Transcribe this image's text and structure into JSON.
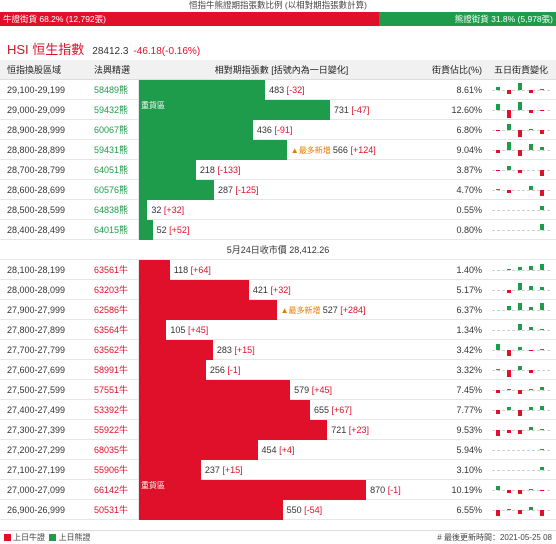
{
  "header": {
    "title": "恒指牛熊證期指張數比例 (以相對期指張數計算)",
    "bull_label": "牛證街貨 68.2% (12,792張)",
    "bull_pct": 68.2,
    "bear_label": "熊證街貨 31.8% (5,978張)",
    "bear_pct": 31.8
  },
  "index": {
    "name": "HSI 恒生指數",
    "value": "28412.3",
    "change": "-46.18(-0.16%)"
  },
  "columns": {
    "range": "恒指換股區域",
    "code": "法興精選",
    "bars": "相對期指張數 [括號內為一日變化]",
    "pct": "街貨佔比(%)",
    "five": "五日街貨變化"
  },
  "close_note": "5月24日收市價 28,412.26",
  "max_contracts": 900,
  "bear_rows": [
    {
      "range": "29,100-29,199",
      "code": "58489熊",
      "count": 483,
      "count_text": "483",
      "chg": "[-32]",
      "pct": "8.61%",
      "tag": "",
      "spark": [
        2,
        -3,
        5,
        -2,
        1
      ]
    },
    {
      "range": "29,000-29,099",
      "code": "59432熊",
      "count": 731,
      "count_text": "731",
      "chg": "[-47]",
      "pct": "12.60%",
      "tag": "重貨區",
      "spark": [
        4,
        -6,
        6,
        -2,
        -1
      ]
    },
    {
      "range": "28,900-28,999",
      "code": "60067熊",
      "count": 436,
      "count_text": "436",
      "chg": "[-91]",
      "pct": "6.80%",
      "tag": "",
      "spark": [
        -1,
        4,
        -5,
        1,
        -3
      ]
    },
    {
      "range": "28,800-28,899",
      "code": "59431熊",
      "count": 566,
      "count_text": "566",
      "chg": "[+124]",
      "pct": "9.04%",
      "tag": "最多新增",
      "spark": [
        -2,
        6,
        -4,
        4,
        2
      ]
    },
    {
      "range": "28,700-28,799",
      "code": "64051熊",
      "count": 218,
      "count_text": "218",
      "chg": "[-133]",
      "pct": "3.87%",
      "tag": "",
      "spark": [
        -1,
        3,
        -2,
        0,
        -4
      ]
    },
    {
      "range": "28,600-28,699",
      "code": "60576熊",
      "count": 287,
      "count_text": "287",
      "chg": "[-125]",
      "pct": "4.70%",
      "tag": "",
      "spark": [
        1,
        -2,
        0,
        3,
        -4
      ]
    },
    {
      "range": "28,500-28,599",
      "code": "64838熊",
      "count": 32,
      "count_text": "32",
      "chg": "[+32]",
      "pct": "0.55%",
      "tag": "",
      "spark": [
        0,
        0,
        0,
        0,
        3
      ]
    },
    {
      "range": "28,400-28,499",
      "code": "64015熊",
      "count": 52,
      "count_text": "52",
      "chg": "[+52]",
      "pct": "0.80%",
      "tag": "",
      "spark": [
        0,
        0,
        0,
        0,
        4
      ]
    }
  ],
  "bull_rows": [
    {
      "range": "28,100-28,199",
      "code": "63561牛",
      "count": 118,
      "count_text": "118",
      "chg": "[+64]",
      "pct": "1.40%",
      "tag": "",
      "spark": [
        0,
        1,
        2,
        3,
        4
      ]
    },
    {
      "range": "28,000-28,099",
      "code": "63203牛",
      "count": 421,
      "count_text": "421",
      "chg": "[+32]",
      "pct": "5.17%",
      "tag": "",
      "spark": [
        0,
        -2,
        5,
        3,
        2
      ]
    },
    {
      "range": "27,900-27,999",
      "code": "62586牛",
      "count": 527,
      "count_text": "527",
      "chg": "[+284]",
      "pct": "6.37%",
      "tag": "最多新增",
      "spark": [
        0,
        3,
        5,
        2,
        5
      ]
    },
    {
      "range": "27,800-27,899",
      "code": "63564牛",
      "count": 105,
      "count_text": "105",
      "chg": "[+45]",
      "pct": "1.34%",
      "tag": "",
      "spark": [
        0,
        0,
        4,
        2,
        1
      ]
    },
    {
      "range": "27,700-27,799",
      "code": "63562牛",
      "count": 283,
      "count_text": "283",
      "chg": "[+15]",
      "pct": "3.42%",
      "tag": "",
      "spark": [
        4,
        -4,
        2,
        -1,
        1
      ]
    },
    {
      "range": "27,600-27,699",
      "code": "58991牛",
      "count": 256,
      "count_text": "256",
      "chg": "[-1]",
      "pct": "3.32%",
      "tag": "",
      "spark": [
        1,
        -5,
        3,
        -2,
        0
      ]
    },
    {
      "range": "27,500-27,599",
      "code": "57551牛",
      "count": 579,
      "count_text": "579",
      "chg": "[+45]",
      "pct": "7.45%",
      "tag": "",
      "spark": [
        -2,
        1,
        -3,
        1,
        2
      ]
    },
    {
      "range": "27,400-27,499",
      "code": "53392牛",
      "count": 655,
      "count_text": "655",
      "chg": "[+67]",
      "pct": "7.77%",
      "tag": "",
      "spark": [
        -3,
        2,
        -4,
        2,
        3
      ]
    },
    {
      "range": "27,300-27,399",
      "code": "55922牛",
      "count": 721,
      "count_text": "721",
      "chg": "[+23]",
      "pct": "9.53%",
      "tag": "",
      "spark": [
        -4,
        -2,
        -3,
        2,
        1
      ]
    },
    {
      "range": "27,200-27,299",
      "code": "68035牛",
      "count": 454,
      "count_text": "454",
      "chg": "[+4]",
      "pct": "5.94%",
      "tag": "",
      "spark": [
        0,
        0,
        0,
        0,
        1
      ]
    },
    {
      "range": "27,100-27,199",
      "code": "55906牛",
      "count": 237,
      "count_text": "237",
      "chg": "[+15]",
      "pct": "3.10%",
      "tag": "",
      "spark": [
        0,
        0,
        0,
        0,
        2
      ]
    },
    {
      "range": "27,000-27,099",
      "code": "66142牛",
      "count": 870,
      "count_text": "870",
      "chg": "[-1]",
      "pct": "10.19%",
      "tag": "重貨區",
      "spark": [
        3,
        -2,
        -3,
        1,
        -1
      ]
    },
    {
      "range": "26,900-26,999",
      "code": "50531牛",
      "count": 550,
      "count_text": "550",
      "chg": "[-54]",
      "pct": "6.55%",
      "tag": "",
      "spark": [
        -4,
        1,
        -3,
        2,
        -4
      ]
    }
  ],
  "legend": {
    "bull": "上日牛證",
    "bear": "上日熊證",
    "updated": "# 最後更新時間：2021-05-25 08"
  },
  "colors": {
    "bull": "#e0102a",
    "bear": "#1f9b4c",
    "new_tag": "#e67a00"
  }
}
